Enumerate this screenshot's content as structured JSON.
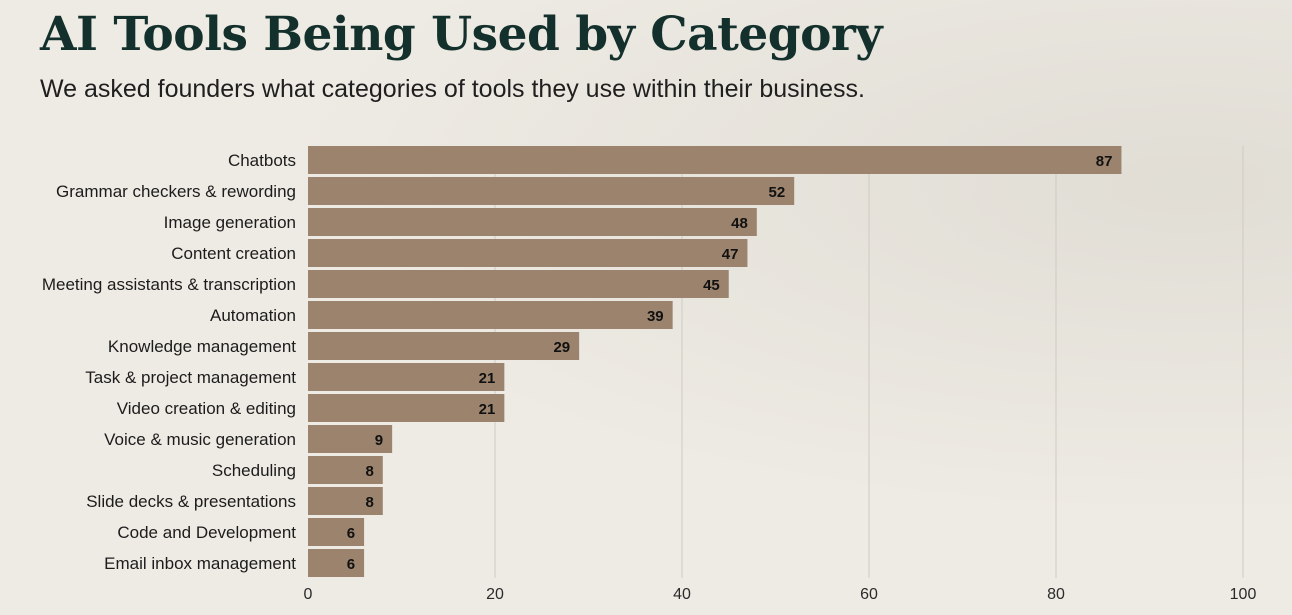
{
  "chart_data": {
    "type": "bar",
    "orientation": "horizontal",
    "title": "AI Tools Being Used by Category",
    "subtitle": "We asked founders what categories of tools they use within their business.",
    "categories": [
      "Chatbots",
      "Grammar checkers & rewording",
      "Image generation",
      "Content creation",
      "Meeting assistants & transcription",
      "Automation",
      "Knowledge management",
      "Task & project management",
      "Video creation & editing",
      "Voice & music generation",
      "Scheduling",
      "Slide decks & presentations",
      "Code and Development",
      "Email inbox management"
    ],
    "values": [
      87,
      52,
      48,
      47,
      45,
      39,
      29,
      21,
      21,
      9,
      8,
      8,
      6,
      6
    ],
    "xlim": [
      0,
      100
    ],
    "xticks": [
      0,
      20,
      40,
      60,
      80,
      100
    ],
    "xlabel": "",
    "ylabel": "",
    "grid": true,
    "bar_color": "#9c836d",
    "grid_color": "#cfcbc2"
  }
}
